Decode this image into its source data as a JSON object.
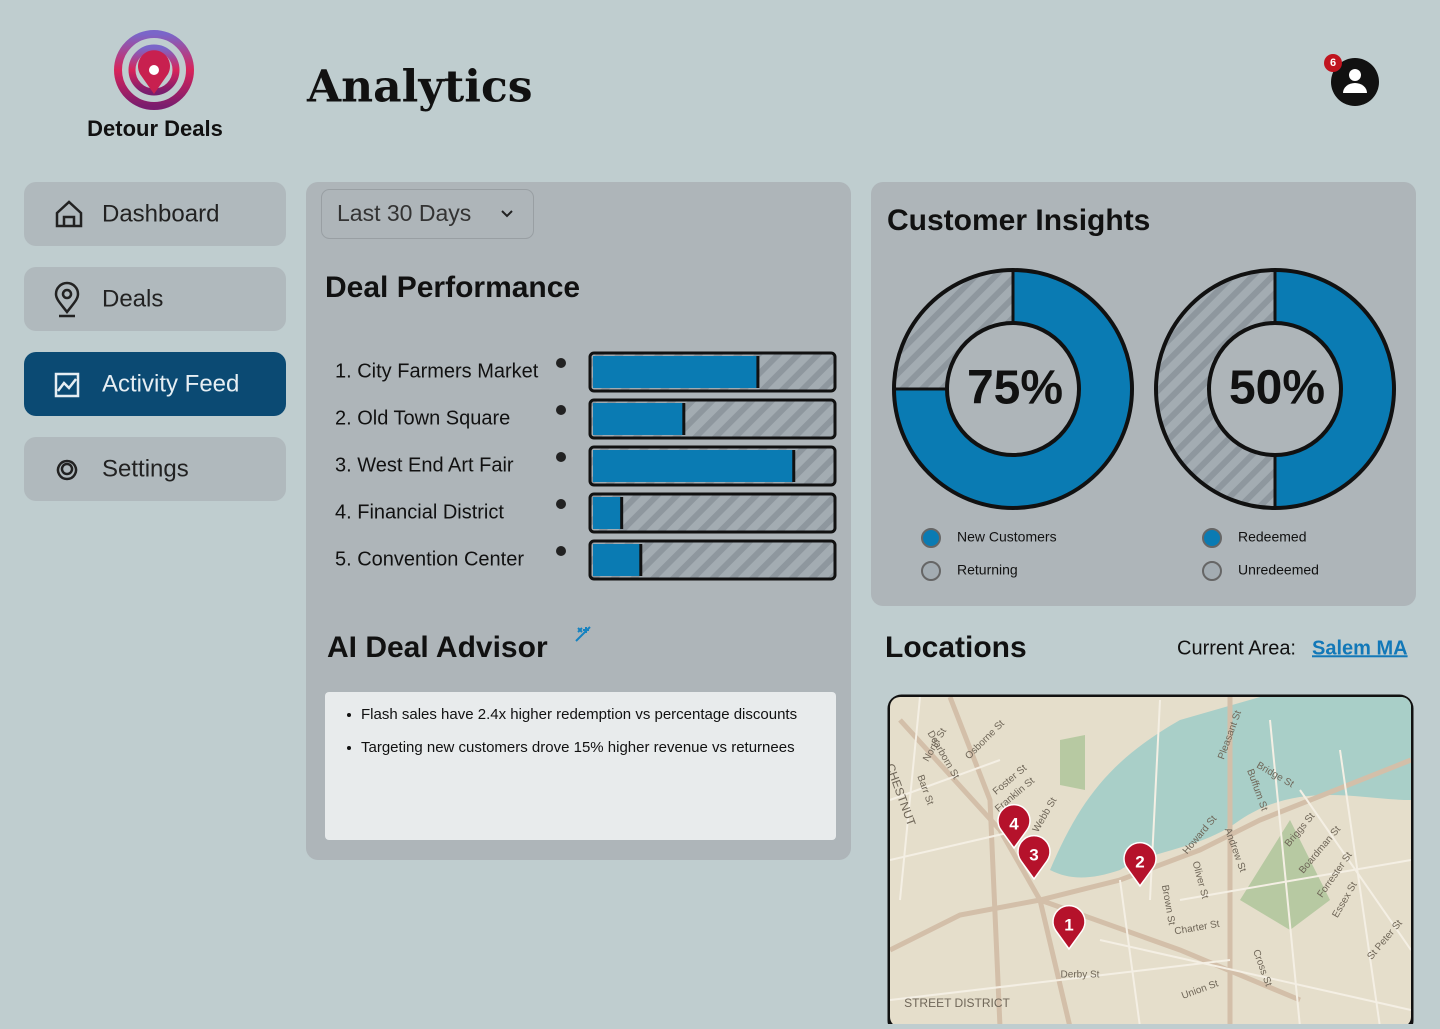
{
  "brand": {
    "name": "Detour Deals"
  },
  "header": {
    "title": "Analytics",
    "notification_count": 6
  },
  "nav": [
    {
      "label": "Dashboard",
      "active": false
    },
    {
      "label": "Deals",
      "active": false
    },
    {
      "label": "Activity Feed",
      "active": true
    },
    {
      "label": "Settings",
      "active": false
    }
  ],
  "deal_performance": {
    "filter": "Last 30 Days",
    "title": "Deal Performance",
    "deals": [
      {
        "label": "1. City Farmers Market",
        "value": 69
      },
      {
        "label": "2. Old Town Square",
        "value": 38
      },
      {
        "label": "3. West End Art Fair",
        "value": 84
      },
      {
        "label": "4. Financial District",
        "value": 12
      },
      {
        "label": "5. Convention Center",
        "value": 20
      }
    ]
  },
  "ai_advisor": {
    "title": "AI Deal Advisor",
    "insights": [
      "Flash sales have 2.4x higher redemption vs percentage discounts",
      "Targeting new customers drove 15% higher revenue vs returnees"
    ]
  },
  "customer_insights": {
    "title": "Customer Insights",
    "donuts": [
      {
        "value": 75,
        "label": "75%",
        "legend": [
          "New Customers",
          "Returning"
        ]
      },
      {
        "value": 50,
        "label": "50%",
        "legend": [
          "Redeemed",
          "Unredeemed"
        ]
      }
    ]
  },
  "locations": {
    "title": "Locations",
    "area_label": "Current Area:",
    "area": "Salem MA",
    "pins": [
      "1",
      "2",
      "3",
      "4"
    ],
    "streets": [
      "North St",
      "Dearborn St",
      "Osborne St",
      "Foster St",
      "Franklin St",
      "Webb St",
      "Bridge St",
      "Howard St",
      "Oliver St",
      "Andrew St",
      "Briggs St",
      "Boardman St",
      "Forrester St",
      "Essex St",
      "Derby St",
      "St Peter St",
      "Brown St",
      "Charter St",
      "Union St",
      "Cross St",
      "Pleasant St",
      "Buffum St",
      "Barr St",
      "CHESTNUT",
      "STREET DISTRICT"
    ]
  }
}
